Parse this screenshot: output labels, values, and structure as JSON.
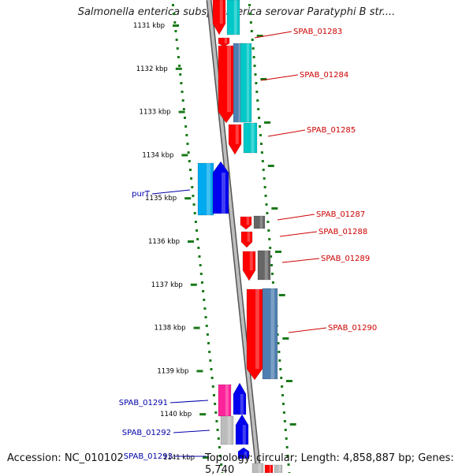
{
  "title": "Salmonella enterica subsp. enterica serovar Paratyphi B str....",
  "accession": "Accession: NC_010102",
  "summary": "Topology: circular; Length: 4,858,887 bp; Genes: 5,740",
  "colors": {
    "backbone": "#8a8a8a",
    "ticks": "#1a7a1a",
    "label_forward": "#cc0000",
    "label_reverse": "#0000aa"
  },
  "scale_labels": [
    "1131 kbp",
    "1132 kbp",
    "1133 kbp",
    "1134 kbp",
    "1135 kbp",
    "1136 kbp",
    "1137 kbp",
    "1138 kbp",
    "1139 kbp",
    "1140 kbp",
    "1141 kbp"
  ],
  "genes": [
    {
      "label": "SPAB_01283",
      "strand": "forward",
      "colors": [
        "#ff0000",
        "#00c8c8"
      ]
    },
    {
      "label": "SPAB_01284",
      "strand": "forward",
      "colors": [
        "#ff0000",
        "#4f7fb0",
        "#00c8c8"
      ]
    },
    {
      "label": "SPAB_01285",
      "strand": "forward",
      "colors": [
        "#ff0000",
        "#00c8c8"
      ]
    },
    {
      "label": "purT",
      "strand": "reverse",
      "colors": [
        "#00aaee",
        "#0000ee"
      ]
    },
    {
      "label": "SPAB_01287",
      "strand": "forward",
      "colors": [
        "#ff0000",
        "#666666"
      ]
    },
    {
      "label": "SPAB_01288",
      "strand": "forward",
      "colors": [
        "#ff0000"
      ]
    },
    {
      "label": "SPAB_01289",
      "strand": "forward",
      "colors": [
        "#ff0000",
        "#666666"
      ]
    },
    {
      "label": "SPAB_01290",
      "strand": "forward",
      "colors": [
        "#ff0000",
        "#4f7fb0"
      ]
    },
    {
      "label": "SPAB_01291",
      "strand": "reverse",
      "colors": [
        "#ff2299",
        "#0000ee"
      ]
    },
    {
      "label": "SPAB_01292",
      "strand": "reverse",
      "colors": [
        "#bbbbbb",
        "#0000ee"
      ]
    },
    {
      "label": "SPAB_01293",
      "strand": "reverse",
      "colors": [
        "#bbbbbb",
        "#0000ee"
      ]
    }
  ]
}
